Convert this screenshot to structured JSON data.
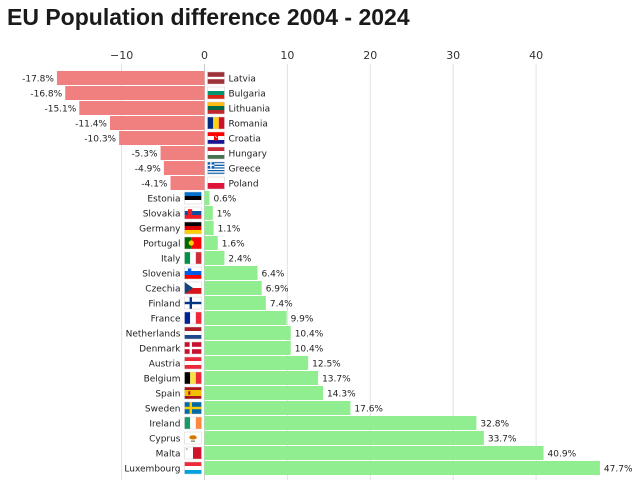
{
  "chart_data": {
    "type": "bar",
    "orientation": "horizontal",
    "title": "EU Population difference 2004 - 2024",
    "xlabel": "",
    "ylabel": "",
    "xlim": [
      -21,
      48.5
    ],
    "xticks": [
      -10,
      0,
      10,
      20,
      30,
      40
    ],
    "xtick_labels": [
      "−10",
      "0",
      "10",
      "20",
      "30",
      "40"
    ],
    "grid": true,
    "value_suffix": "%",
    "colors": {
      "negative": "#f08080",
      "positive": "#90ee90",
      "grid": "#e2e2e2",
      "zero_line": "#cccccc"
    },
    "categories": [
      "Latvia",
      "Bulgaria",
      "Lithuania",
      "Romania",
      "Croatia",
      "Hungary",
      "Greece",
      "Poland",
      "Estonia",
      "Slovakia",
      "Germany",
      "Portugal",
      "Italy",
      "Slovenia",
      "Czechia",
      "Finland",
      "France",
      "Netherlands",
      "Denmark",
      "Austria",
      "Belgium",
      "Spain",
      "Sweden",
      "Ireland",
      "Cyprus",
      "Malta",
      "Luxembourg"
    ],
    "values": [
      -17.8,
      -16.8,
      -15.1,
      -11.4,
      -10.3,
      -5.3,
      -4.9,
      -4.1,
      0.6,
      1,
      1.1,
      1.6,
      2.4,
      6.4,
      6.9,
      7.4,
      9.9,
      10.4,
      10.4,
      12.5,
      13.7,
      14.3,
      17.6,
      32.8,
      33.7,
      40.9,
      47.7
    ],
    "flag_icons": [
      "latvia-flag-icon",
      "bulgaria-flag-icon",
      "lithuania-flag-icon",
      "romania-flag-icon",
      "croatia-flag-icon",
      "hungary-flag-icon",
      "greece-flag-icon",
      "poland-flag-icon",
      "estonia-flag-icon",
      "slovakia-flag-icon",
      "germany-flag-icon",
      "portugal-flag-icon",
      "italy-flag-icon",
      "slovenia-flag-icon",
      "czechia-flag-icon",
      "finland-flag-icon",
      "france-flag-icon",
      "netherlands-flag-icon",
      "denmark-flag-icon",
      "austria-flag-icon",
      "belgium-flag-icon",
      "spain-flag-icon",
      "sweden-flag-icon",
      "ireland-flag-icon",
      "cyprus-flag-icon",
      "malta-flag-icon",
      "luxembourg-flag-icon"
    ]
  }
}
